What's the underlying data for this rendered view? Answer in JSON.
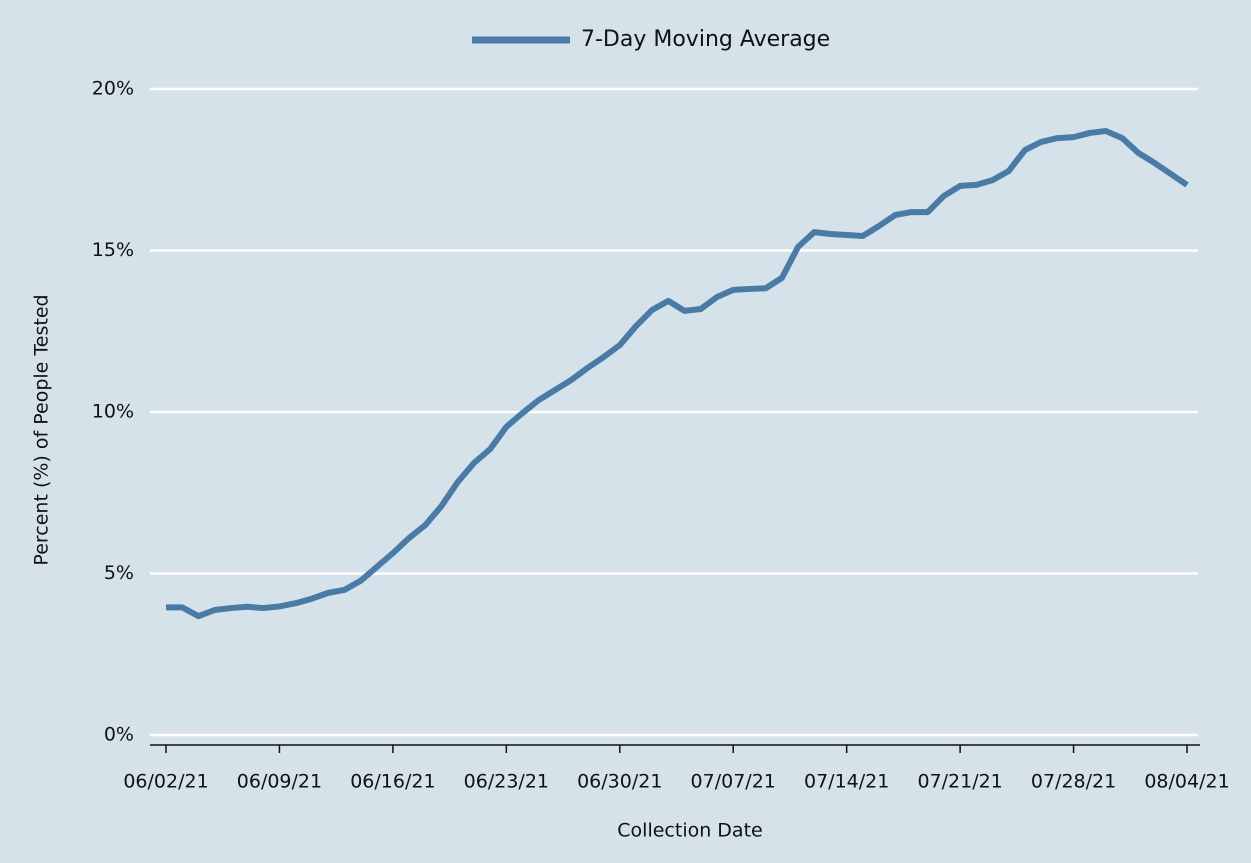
{
  "chart_data": {
    "type": "line",
    "x_label": "Collection Date",
    "y_label": "Percent (%) of People Tested",
    "categories": [
      "06/02/21",
      null,
      null,
      null,
      null,
      null,
      null,
      "06/09/21",
      null,
      null,
      null,
      null,
      null,
      null,
      "06/16/21",
      null,
      null,
      null,
      null,
      null,
      null,
      "06/23/21",
      null,
      null,
      null,
      null,
      null,
      null,
      "06/30/21",
      null,
      null,
      null,
      null,
      null,
      null,
      "07/07/21",
      null,
      null,
      null,
      null,
      null,
      null,
      "07/14/21",
      null,
      null,
      null,
      null,
      null,
      null,
      "07/21/21",
      null,
      null,
      null,
      null,
      null,
      null,
      "07/28/21",
      null,
      null,
      null,
      null,
      null,
      null,
      "08/04/21"
    ],
    "series": [
      {
        "name": "7-Day Moving Average",
        "color": "#4a7ba6",
        "values": [
          3.95,
          3.95,
          3.68,
          3.87,
          3.93,
          3.97,
          3.93,
          3.98,
          4.08,
          4.22,
          4.4,
          4.49,
          4.77,
          5.2,
          5.63,
          6.1,
          6.5,
          7.09,
          7.83,
          8.42,
          8.85,
          9.54,
          9.97,
          10.37,
          10.68,
          10.99,
          11.36,
          11.7,
          12.07,
          12.66,
          13.16,
          13.44,
          13.13,
          13.19,
          13.56,
          13.78,
          13.81,
          13.83,
          14.15,
          15.11,
          15.57,
          15.51,
          15.48,
          15.45,
          15.76,
          16.1,
          16.19,
          16.19,
          16.69,
          17.0,
          17.03,
          17.18,
          17.46,
          18.11,
          18.36,
          18.48,
          18.51,
          18.64,
          18.7,
          18.48,
          18.02,
          17.71,
          17.37,
          17.03
        ]
      }
    ],
    "ylim": [
      0,
      20
    ],
    "yticks": [
      {
        "value": 0,
        "label": "0%"
      },
      {
        "value": 5,
        "label": "5%"
      },
      {
        "value": 10,
        "label": "10%"
      },
      {
        "value": 15,
        "label": "15%"
      },
      {
        "value": 20,
        "label": "20%"
      }
    ],
    "grid": true,
    "legend": "top"
  }
}
